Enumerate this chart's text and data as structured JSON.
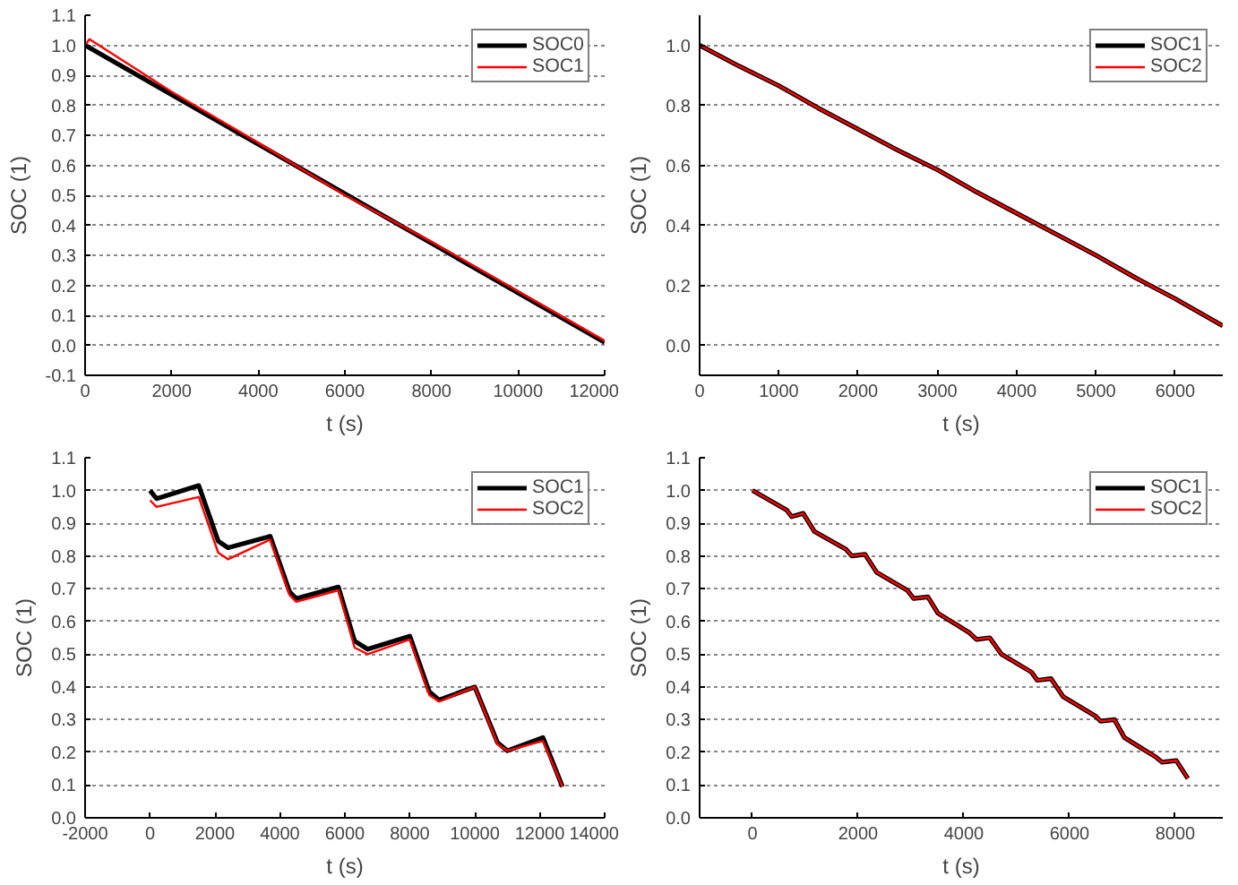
{
  "chart_data": [
    {
      "type": "line",
      "xlabel": "t (s)",
      "ylabel": "SOC (1)",
      "xlim": [
        0,
        12000
      ],
      "ylim": [
        -0.1,
        1.1
      ],
      "xticks": [
        0,
        2000,
        4000,
        6000,
        8000,
        10000,
        12000
      ],
      "yticks": [
        {
          "value": -0.1,
          "label": "-0.1"
        },
        {
          "value": 0,
          "label": "0.0"
        },
        {
          "value": 0.1,
          "label": "0.1"
        },
        {
          "value": 0.2,
          "label": "0.2"
        },
        {
          "value": 0.3,
          "label": "0.3"
        },
        {
          "value": 0.4,
          "label": "0.4"
        },
        {
          "value": 0.5,
          "label": "0.5"
        },
        {
          "value": 0.6,
          "label": "0.6"
        },
        {
          "value": 0.7,
          "label": "0.7"
        },
        {
          "value": 0.8,
          "label": "0.8"
        },
        {
          "value": 0.9,
          "label": "0.9"
        },
        {
          "value": 1.0,
          "label": "1.0"
        },
        {
          "value": 1.1,
          "label": "1.1"
        }
      ],
      "grid": "y",
      "legend": "top right",
      "line_style": "solid",
      "series": [
        {
          "name": "SOC0",
          "color": "#000000",
          "x": [
            0,
            2000,
            4000,
            6000,
            8000,
            10000,
            12000
          ],
          "values": [
            1.0,
            0.835,
            0.67,
            0.505,
            0.34,
            0.175,
            0.01
          ]
        },
        {
          "name": "SOC1",
          "color": "#ff0000",
          "x": [
            0,
            100,
            2000,
            4000,
            6000,
            8000,
            10000,
            12000
          ],
          "values": [
            1.0,
            1.02,
            0.845,
            0.675,
            0.5,
            0.345,
            0.18,
            0.015
          ]
        }
      ]
    },
    {
      "type": "line",
      "xlabel": "t (s)",
      "ylabel": "SOC (1)",
      "xlim": [
        0,
        6600
      ],
      "ylim": [
        -0.1,
        1.1
      ],
      "xticks": [
        0,
        1000,
        2000,
        3000,
        4000,
        5000,
        6000
      ],
      "yticks": [
        {
          "value": 0,
          "label": "0.0"
        },
        {
          "value": 0.2,
          "label": "0.2"
        },
        {
          "value": 0.4,
          "label": "0.4"
        },
        {
          "value": 0.6,
          "label": "0.6"
        },
        {
          "value": 0.8,
          "label": "0.8"
        },
        {
          "value": 1.0,
          "label": "1.0"
        }
      ],
      "grid": "y",
      "legend": "top right",
      "line_style": "solid",
      "series": [
        {
          "name": "SOC1",
          "color": "#000000",
          "x": [
            0,
            500,
            1000,
            1500,
            2000,
            2500,
            3000,
            3500,
            4000,
            4500,
            5000,
            5500,
            6000,
            6600
          ],
          "values": [
            1.0,
            0.93,
            0.865,
            0.79,
            0.72,
            0.65,
            0.585,
            0.51,
            0.44,
            0.37,
            0.3,
            0.225,
            0.155,
            0.065
          ]
        },
        {
          "name": "SOC2",
          "color": "#ff0000",
          "x": [
            0,
            500,
            1000,
            1500,
            2000,
            2500,
            3000,
            3500,
            4000,
            4500,
            5000,
            5500,
            6000,
            6600
          ],
          "values": [
            1.0,
            0.93,
            0.865,
            0.79,
            0.72,
            0.65,
            0.585,
            0.51,
            0.44,
            0.37,
            0.3,
            0.225,
            0.155,
            0.065
          ]
        }
      ]
    },
    {
      "type": "line",
      "xlabel": "t (s)",
      "ylabel": "SOC (1)",
      "xlim": [
        -2000,
        14000
      ],
      "ylim": [
        0,
        1.1
      ],
      "xticks": [
        -2000,
        0,
        2000,
        4000,
        6000,
        8000,
        10000,
        12000,
        14000
      ],
      "yticks": [
        {
          "value": 0,
          "label": "0.0"
        },
        {
          "value": 0.1,
          "label": "0.1"
        },
        {
          "value": 0.2,
          "label": "0.2"
        },
        {
          "value": 0.3,
          "label": "0.3"
        },
        {
          "value": 0.4,
          "label": "0.4"
        },
        {
          "value": 0.5,
          "label": "0.5"
        },
        {
          "value": 0.6,
          "label": "0.6"
        },
        {
          "value": 0.7,
          "label": "0.7"
        },
        {
          "value": 0.8,
          "label": "0.8"
        },
        {
          "value": 0.9,
          "label": "0.9"
        },
        {
          "value": 1.0,
          "label": "1.0"
        },
        {
          "value": 1.1,
          "label": "1.1"
        }
      ],
      "grid": "y",
      "legend": "top right",
      "line_style": "solid",
      "series": [
        {
          "name": "SOC1",
          "color": "#000000",
          "x": [
            0,
            200,
            1500,
            2100,
            2400,
            3700,
            4300,
            4500,
            5800,
            6300,
            6700,
            8000,
            8600,
            8900,
            10000,
            10700,
            11000,
            12100,
            12700
          ],
          "values": [
            1.0,
            0.975,
            1.015,
            0.845,
            0.825,
            0.86,
            0.69,
            0.67,
            0.705,
            0.54,
            0.515,
            0.555,
            0.385,
            0.36,
            0.4,
            0.23,
            0.205,
            0.245,
            0.095
          ]
        },
        {
          "name": "SOC2",
          "color": "#ff0000",
          "x": [
            0,
            200,
            1500,
            2100,
            2400,
            3700,
            4300,
            4500,
            5800,
            6300,
            6700,
            8000,
            8600,
            8900,
            10000,
            10700,
            11000,
            12100,
            12700
          ],
          "values": [
            0.97,
            0.95,
            0.98,
            0.81,
            0.79,
            0.85,
            0.68,
            0.66,
            0.695,
            0.52,
            0.5,
            0.545,
            0.375,
            0.355,
            0.4,
            0.225,
            0.205,
            0.235,
            0.095
          ]
        }
      ]
    },
    {
      "type": "line",
      "xlabel": "t (s)",
      "ylabel": "SOC (1)",
      "xlim": [
        -1000,
        8900
      ],
      "ylim": [
        0,
        1.1
      ],
      "xticks": [
        0,
        2000,
        4000,
        6000,
        8000
      ],
      "yticks": [
        {
          "value": 0,
          "label": "0.0"
        },
        {
          "value": 0.1,
          "label": "0.1"
        },
        {
          "value": 0.2,
          "label": "0.2"
        },
        {
          "value": 0.3,
          "label": "0.3"
        },
        {
          "value": 0.4,
          "label": "0.4"
        },
        {
          "value": 0.5,
          "label": "0.5"
        },
        {
          "value": 0.6,
          "label": "0.6"
        },
        {
          "value": 0.7,
          "label": "0.7"
        },
        {
          "value": 0.8,
          "label": "0.8"
        },
        {
          "value": 0.9,
          "label": "0.9"
        },
        {
          "value": 1.0,
          "label": "1.0"
        },
        {
          "value": 1.1,
          "label": "1.1"
        }
      ],
      "grid": "y",
      "legend": "top right",
      "line_style": "solid",
      "series": [
        {
          "name": "SOC1",
          "color": "#000000",
          "x": [
            0,
            650,
            740,
            960,
            1170,
            1770,
            1880,
            2130,
            2350,
            2930,
            3050,
            3320,
            3510,
            4110,
            4240,
            4490,
            4710,
            5280,
            5390,
            5650,
            5880,
            6500,
            6590,
            6850,
            7040,
            7640,
            7750,
            8020,
            8240
          ],
          "values": [
            1.0,
            0.94,
            0.92,
            0.93,
            0.875,
            0.82,
            0.8,
            0.805,
            0.75,
            0.695,
            0.67,
            0.675,
            0.625,
            0.565,
            0.545,
            0.55,
            0.5,
            0.445,
            0.42,
            0.425,
            0.37,
            0.31,
            0.295,
            0.3,
            0.245,
            0.185,
            0.17,
            0.175,
            0.12
          ]
        },
        {
          "name": "SOC2",
          "color": "#ff0000",
          "x": [
            0,
            650,
            740,
            960,
            1170,
            1770,
            1880,
            2130,
            2350,
            2930,
            3050,
            3320,
            3510,
            4110,
            4240,
            4490,
            4710,
            5280,
            5390,
            5650,
            5880,
            6500,
            6590,
            6850,
            7040,
            7640,
            7750,
            8020,
            8240
          ],
          "values": [
            1.0,
            0.94,
            0.92,
            0.93,
            0.875,
            0.82,
            0.8,
            0.805,
            0.75,
            0.695,
            0.67,
            0.675,
            0.625,
            0.565,
            0.545,
            0.55,
            0.5,
            0.445,
            0.42,
            0.425,
            0.37,
            0.31,
            0.295,
            0.3,
            0.245,
            0.185,
            0.17,
            0.175,
            0.12
          ]
        }
      ]
    }
  ]
}
